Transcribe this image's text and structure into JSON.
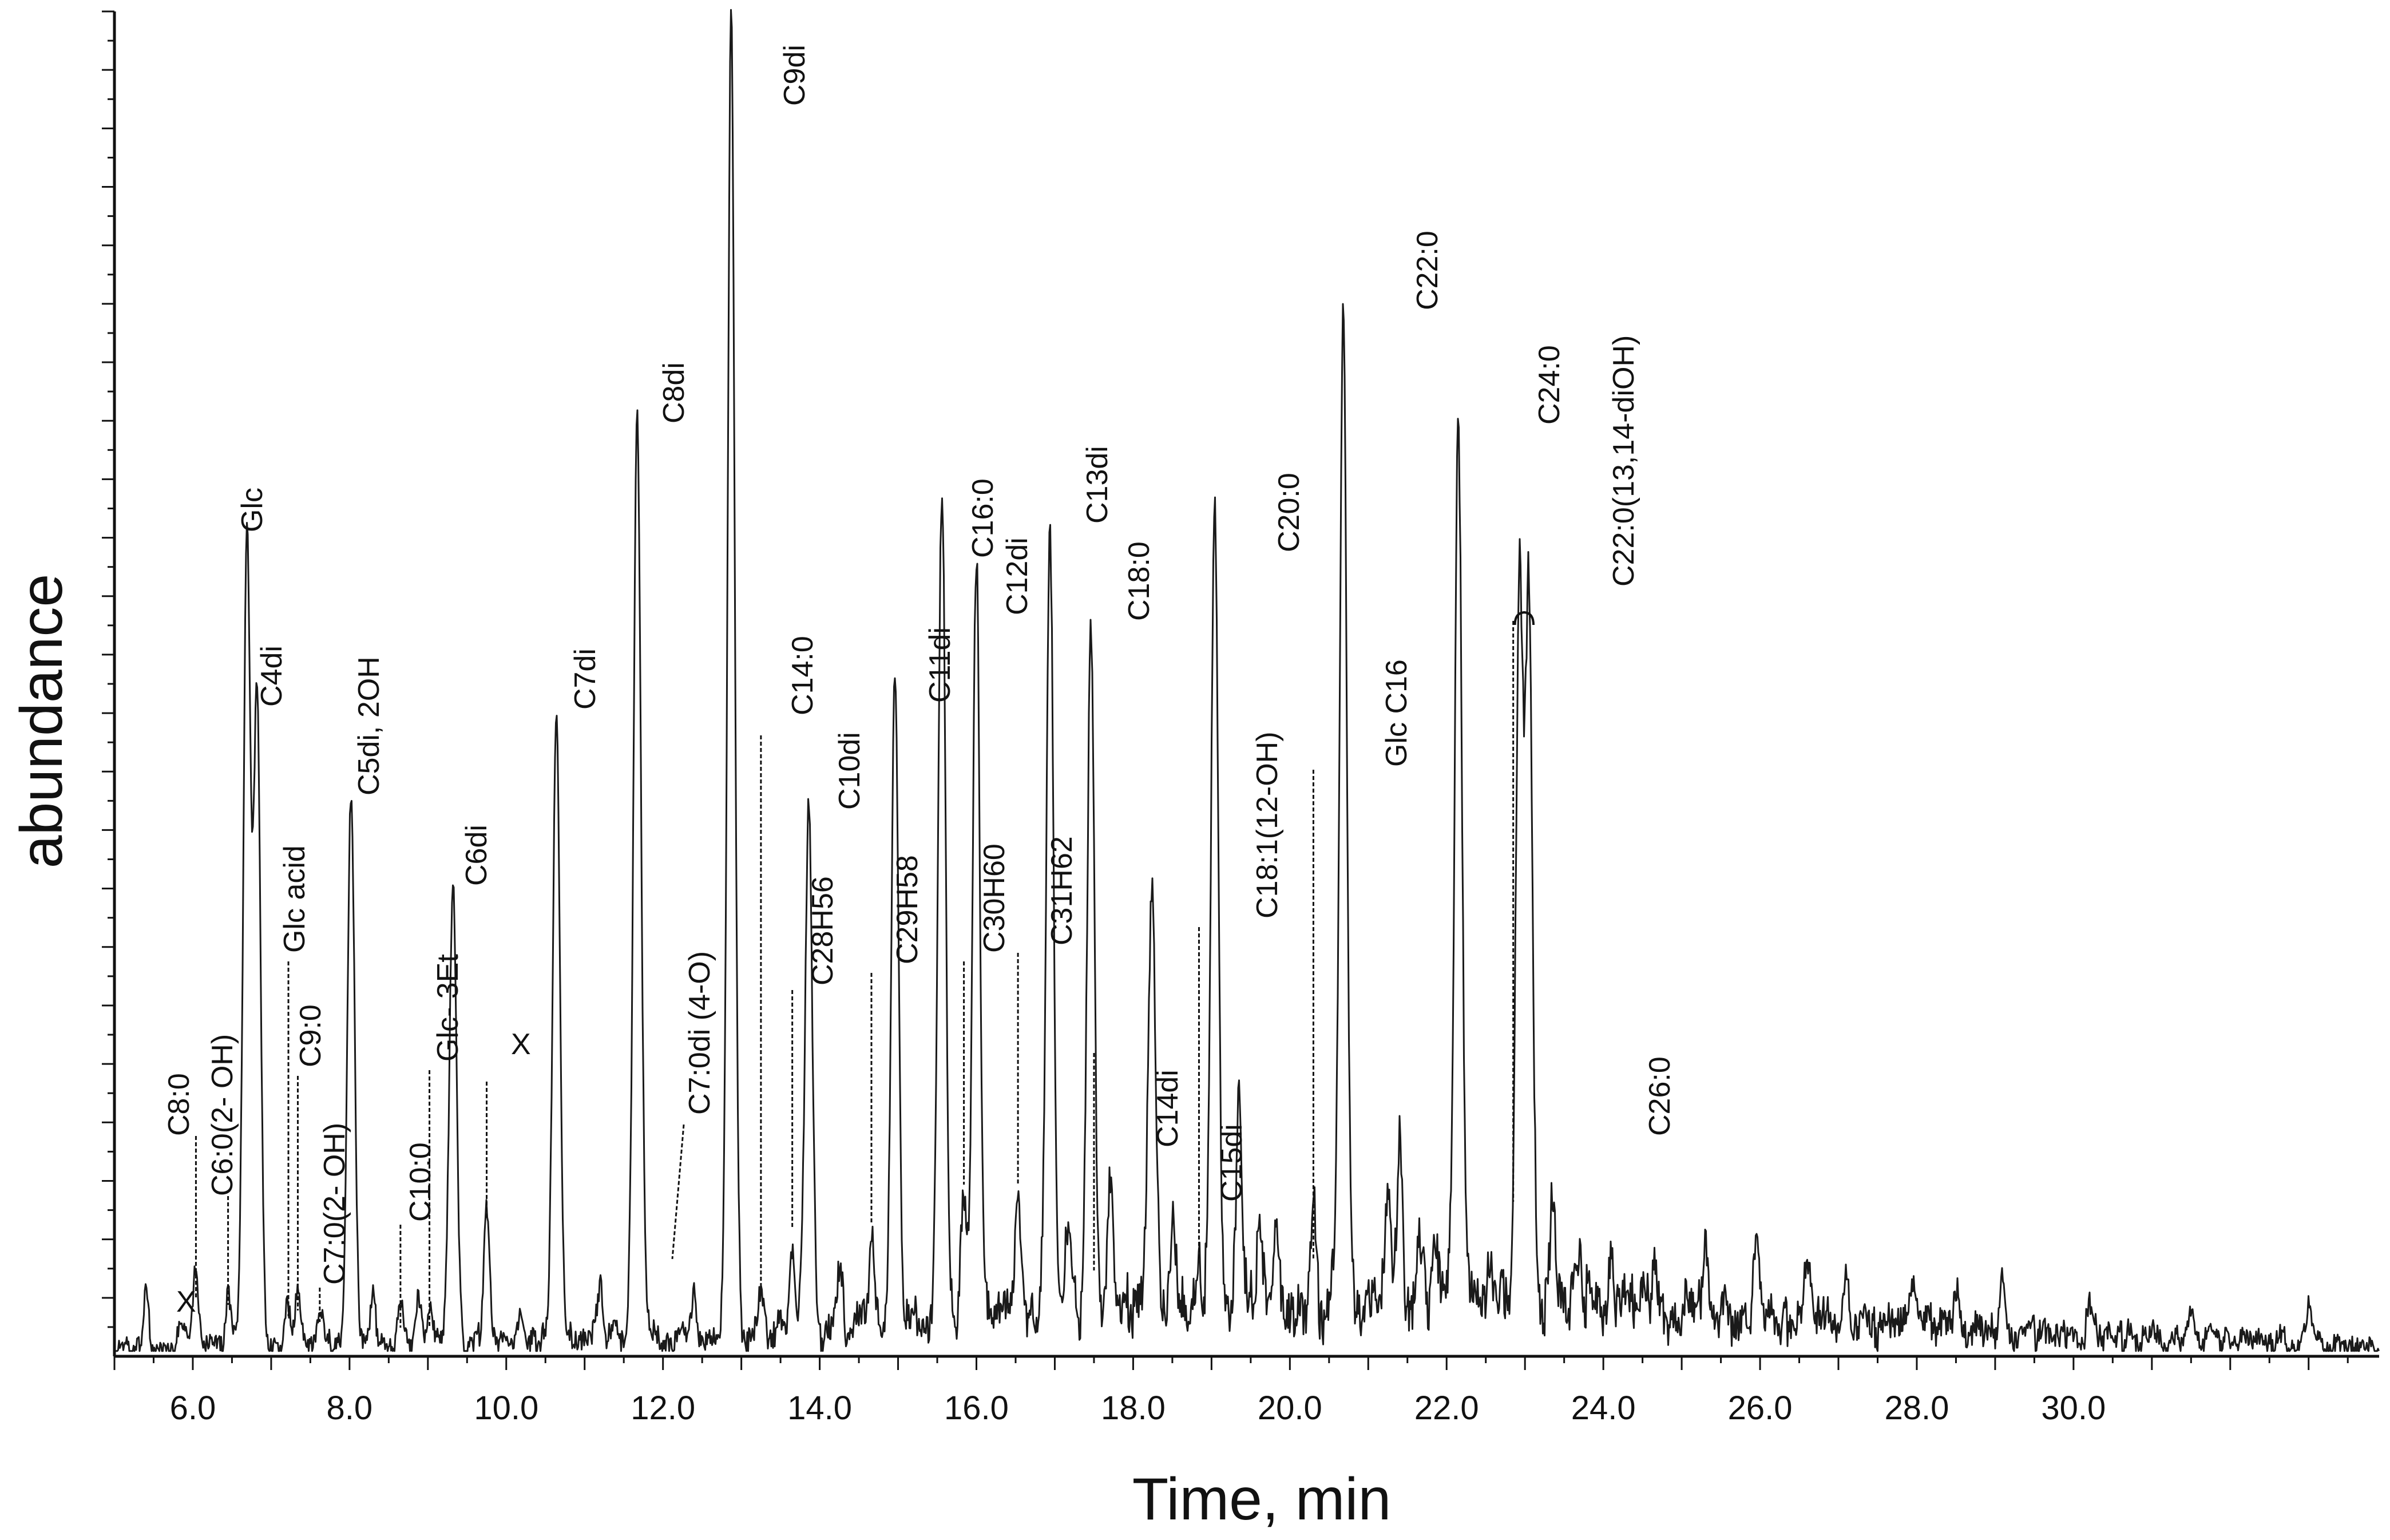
{
  "chart_data": {
    "type": "line",
    "title": "",
    "xlabel": "Time, min",
    "ylabel": "abundance",
    "xlim": [
      5.0,
      33.9
    ],
    "ylim": [
      0,
      100
    ],
    "x_ticks": [
      "6.0",
      "8.0",
      "10.0",
      "12.0",
      "14.0",
      "16.0",
      "18.0",
      "20.0",
      "22.0",
      "24.0",
      "26.0",
      "28.0",
      "30.0"
    ],
    "y_tick_labels": [],
    "grid": false,
    "legend": "none",
    "colors": {
      "trace": "#1a1a1a",
      "axis": "#111111"
    },
    "peaks": [
      {
        "x": 5.4,
        "y": 4.0,
        "label": ""
      },
      {
        "x": 5.86,
        "y": 2.5,
        "label": "X"
      },
      {
        "x": 6.04,
        "y": 5.5,
        "label": "C8:0"
      },
      {
        "x": 6.45,
        "y": 4.0,
        "label": "C6:0(2- OH)"
      },
      {
        "x": 6.69,
        "y": 61.0,
        "label": "Glc"
      },
      {
        "x": 6.82,
        "y": 48.0,
        "label": "C4di"
      },
      {
        "x": 7.22,
        "y": 3.0,
        "label": "Glc acid"
      },
      {
        "x": 7.34,
        "y": 4.5,
        "label": "C9:0"
      },
      {
        "x": 7.62,
        "y": 2.5,
        "label": "C7:0(2- OH)"
      },
      {
        "x": 8.02,
        "y": 41.0,
        "label": "C5di, 2OH"
      },
      {
        "x": 8.3,
        "y": 4.0,
        "label": ""
      },
      {
        "x": 8.65,
        "y": 2.5,
        "label": "C10:0"
      },
      {
        "x": 8.88,
        "y": 3.5,
        "label": ""
      },
      {
        "x": 9.02,
        "y": 2.5,
        "label": "Glc- 3Et"
      },
      {
        "x": 9.32,
        "y": 35.0,
        "label": "C6di"
      },
      {
        "x": 9.75,
        "y": 10.0,
        "label": "X"
      },
      {
        "x": 10.2,
        "y": 2.5,
        "label": ""
      },
      {
        "x": 10.64,
        "y": 47.0,
        "label": "C7di"
      },
      {
        "x": 11.2,
        "y": 3.5,
        "label": ""
      },
      {
        "x": 11.67,
        "y": 69.5,
        "label": "C8di"
      },
      {
        "x": 11.75,
        "y": 4.0,
        "label": "C7:0di (4-O)"
      },
      {
        "x": 12.4,
        "y": 3.5,
        "label": ""
      },
      {
        "x": 12.87,
        "y": 100.0,
        "label": "C9di"
      },
      {
        "x": 13.25,
        "y": 3.0,
        "label": "C14:0"
      },
      {
        "x": 13.65,
        "y": 7.0,
        "label": "C28H56"
      },
      {
        "x": 13.86,
        "y": 40.0,
        "label": "C10di"
      },
      {
        "x": 14.25,
        "y": 5.0,
        "label": ""
      },
      {
        "x": 14.66,
        "y": 6.5,
        "label": "C29H58"
      },
      {
        "x": 14.96,
        "y": 48.5,
        "label": "C11di"
      },
      {
        "x": 15.5,
        "y": 3.0,
        "label": ""
      },
      {
        "x": 15.56,
        "y": 62.0,
        "label": "C16:0"
      },
      {
        "x": 15.84,
        "y": 9.0,
        "label": "C30H60"
      },
      {
        "x": 16.0,
        "y": 56.5,
        "label": "C12di"
      },
      {
        "x": 16.53,
        "y": 9.0,
        "label": "C31H62"
      },
      {
        "x": 16.94,
        "y": 59.0,
        "label": "C13di"
      },
      {
        "x": 17.17,
        "y": 6.0,
        "label": ""
      },
      {
        "x": 17.46,
        "y": 53.0,
        "label": "C18:0"
      },
      {
        "x": 17.71,
        "y": 10.0,
        "label": "C14di"
      },
      {
        "x": 18.24,
        "y": 30.5,
        "label": ""
      },
      {
        "x": 18.51,
        "y": 7.0,
        "label": "C15di"
      },
      {
        "x": 18.84,
        "y": 4.0,
        "label": "C18:1(12-OH)"
      },
      {
        "x": 19.04,
        "y": 59.5,
        "label": "C20:0"
      },
      {
        "x": 19.35,
        "y": 14.0,
        "label": ""
      },
      {
        "x": 19.62,
        "y": 5.0,
        "label": ""
      },
      {
        "x": 19.83,
        "y": 6.5,
        "label": ""
      },
      {
        "x": 20.3,
        "y": 8.0,
        "label": "Glc C16"
      },
      {
        "x": 20.68,
        "y": 75.0,
        "label": "C22:0"
      },
      {
        "x": 21.25,
        "y": 9.5,
        "label": ""
      },
      {
        "x": 21.4,
        "y": 13.5,
        "label": ""
      },
      {
        "x": 21.65,
        "y": 5.5,
        "label": ""
      },
      {
        "x": 21.85,
        "y": 6.0,
        "label": ""
      },
      {
        "x": 22.15,
        "y": 66.5,
        "label": "C24:0"
      },
      {
        "x": 22.55,
        "y": 4.0,
        "label": ""
      },
      {
        "x": 22.93,
        "y": 54.0,
        "label": "C22:0(13,14-diOH)"
      },
      {
        "x": 23.05,
        "y": 53.0,
        "label": ""
      },
      {
        "x": 23.35,
        "y": 6.5,
        "label": "C26:0"
      },
      {
        "x": 23.7,
        "y": 4.0,
        "label": ""
      },
      {
        "x": 24.1,
        "y": 4.5,
        "label": ""
      },
      {
        "x": 24.65,
        "y": 4.5,
        "label": ""
      },
      {
        "x": 25.3,
        "y": 4.5,
        "label": ""
      },
      {
        "x": 25.95,
        "y": 5.0,
        "label": ""
      },
      {
        "x": 26.6,
        "y": 4.5,
        "label": ""
      },
      {
        "x": 27.1,
        "y": 4.0,
        "label": ""
      },
      {
        "x": 27.95,
        "y": 3.5,
        "label": ""
      },
      {
        "x": 28.5,
        "y": 3.5,
        "label": ""
      },
      {
        "x": 29.1,
        "y": 4.5,
        "label": ""
      },
      {
        "x": 30.2,
        "y": 2.0,
        "label": ""
      },
      {
        "x": 31.5,
        "y": 1.5,
        "label": ""
      },
      {
        "x": 33.0,
        "y": 2.5,
        "label": ""
      }
    ]
  }
}
